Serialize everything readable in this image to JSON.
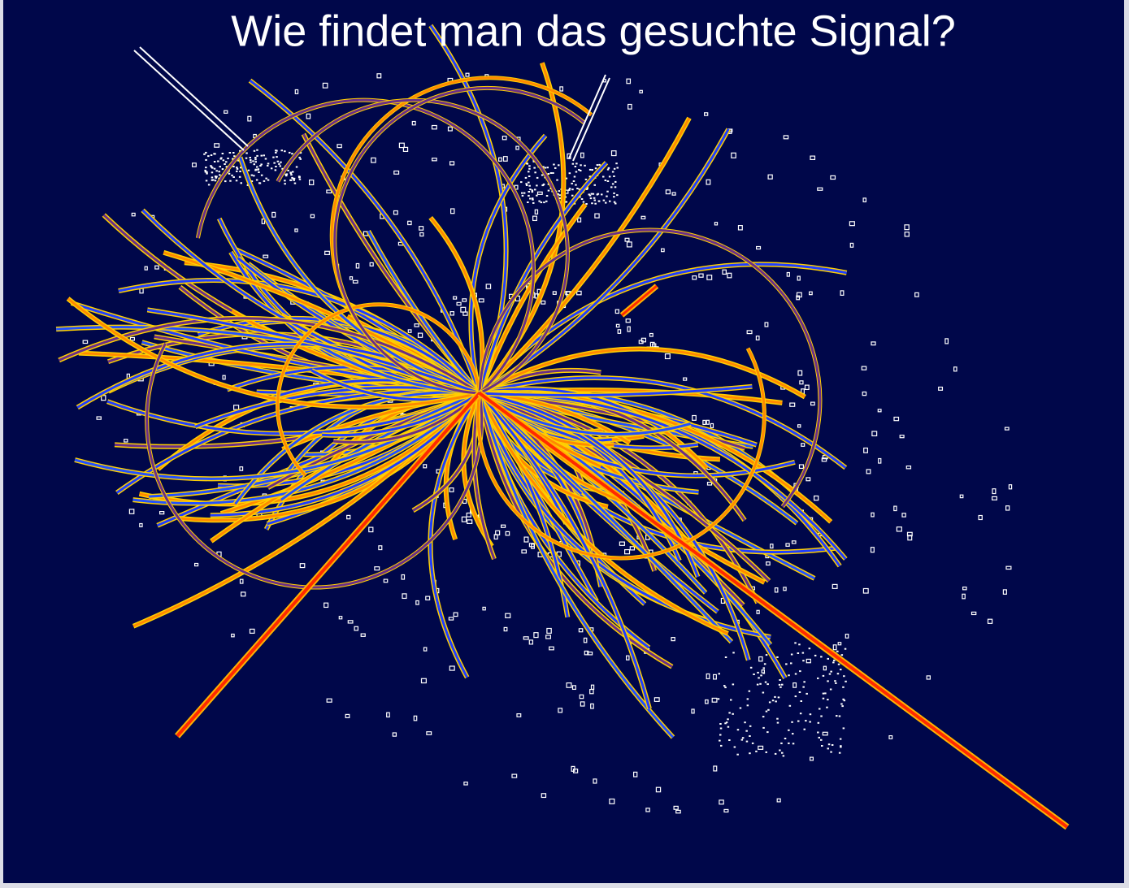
{
  "title": "Wie findet man das gesuchte Signal?"
}
